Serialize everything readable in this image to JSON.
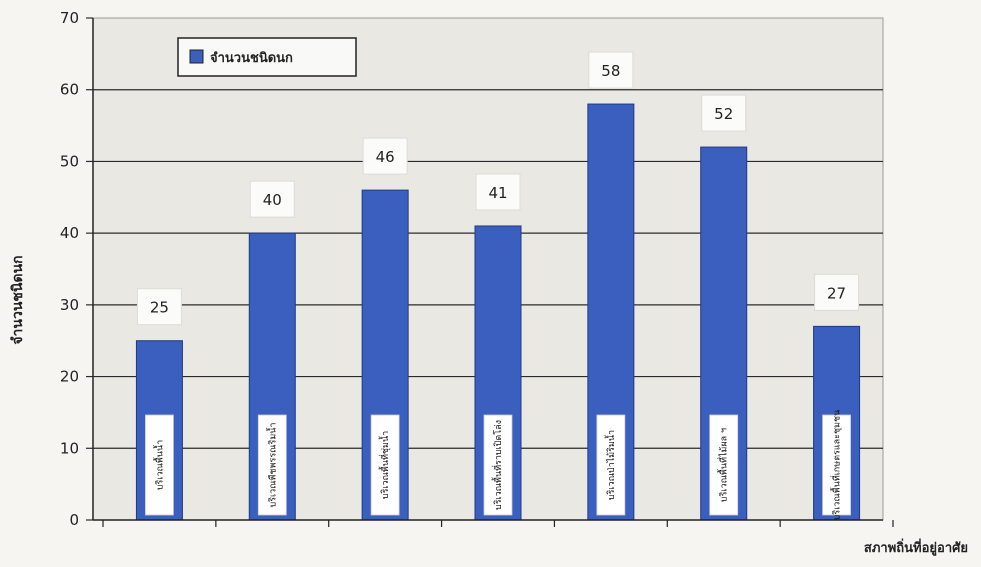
{
  "chart_data": {
    "type": "bar",
    "title": "",
    "ylabel": "จำนวนชนิดนก",
    "xlabel": "สภาพถิ่นที่อยู่อาศัย",
    "ylim": [
      0,
      70
    ],
    "yticks": [
      0,
      10,
      20,
      30,
      40,
      50,
      60,
      70
    ],
    "grid": true,
    "legend_position": "top-left",
    "series": [
      {
        "name": "จำนวนชนิดนก",
        "color": "#3b5fbf",
        "values": [
          25,
          40,
          46,
          41,
          58,
          52,
          27
        ]
      }
    ],
    "categories": [
      "บริเวณพื้นน้ำ",
      "บริเวณพืชพรรณริมน้ำ",
      "บริเวณพื้นที่ชุ่มน้ำ",
      "บริเวณพื้นที่ราบเปิดโล่ง",
      "บริเวณป่าไม้ริมน้ำ",
      "บริเวณพื้นที่ไม้ผล ฯ",
      "บริเวณพื้นที่เกษตรและชุมชน"
    ],
    "data_labels": [
      "25",
      "40",
      "46",
      "41",
      "58",
      "52",
      "27"
    ]
  }
}
